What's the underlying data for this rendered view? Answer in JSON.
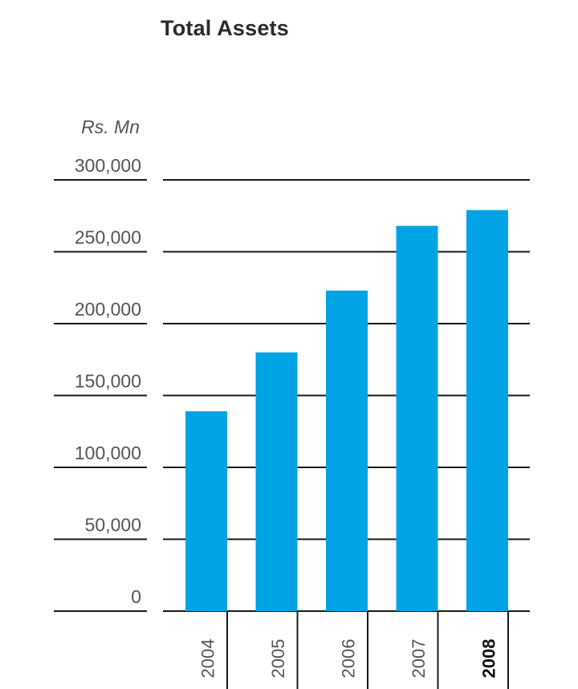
{
  "chart_data": {
    "type": "bar",
    "title": "Total Assets",
    "unit_label": "Rs. Mn",
    "categories": [
      "2004",
      "2005",
      "2006",
      "2007",
      "2008"
    ],
    "highlighted_category": "2008",
    "values": [
      139000,
      180000,
      223000,
      268000,
      279000
    ],
    "yticks": [
      "0",
      "50,000",
      "100,000",
      "150,000",
      "200,000",
      "250,000",
      "300,000"
    ],
    "ytick_values": [
      0,
      50000,
      100000,
      150000,
      200000,
      250000,
      300000
    ],
    "ylim": [
      0,
      300000
    ],
    "bar_color": "#00a3e4",
    "grid": true
  }
}
